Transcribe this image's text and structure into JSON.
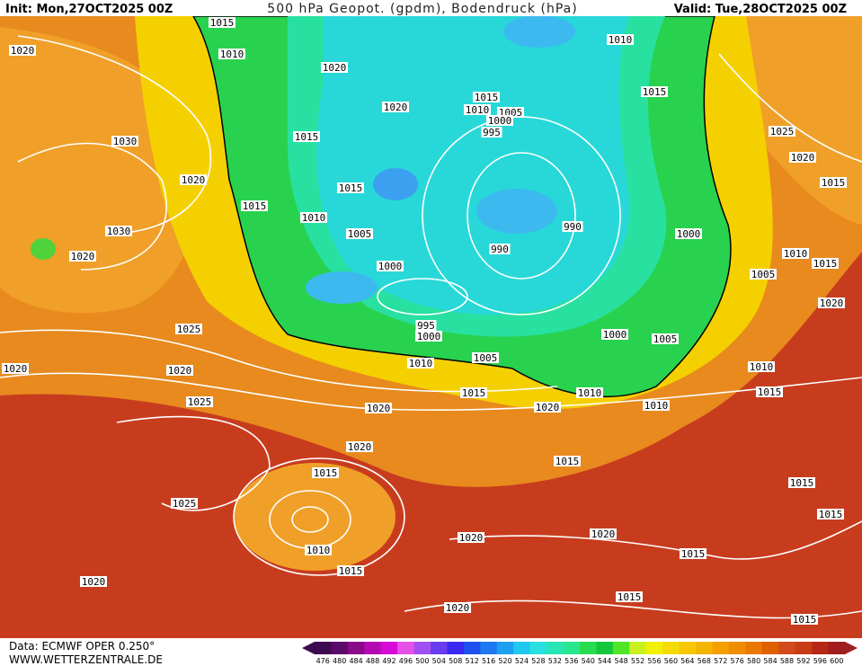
{
  "header": {
    "init": "Init: Mon,27OCT2025 00Z",
    "title": "500 hPa Geopot. (gpdm), Bodendruck (hPa)",
    "valid": "Valid: Tue,28OCT2025 00Z"
  },
  "footer": {
    "source": "Data: ECMWF OPER 0.250°",
    "website": "WWW.WETTERZENTRALE.DE"
  },
  "colorbar": {
    "labels": [
      476,
      480,
      484,
      488,
      492,
      496,
      500,
      504,
      508,
      512,
      516,
      520,
      524,
      528,
      532,
      536,
      540,
      544,
      548,
      552,
      556,
      560,
      564,
      568,
      572,
      576,
      580,
      584,
      588,
      592,
      596,
      600
    ],
    "colors": [
      "#3d0a4f",
      "#5c0a6b",
      "#8a0a8a",
      "#b40ab4",
      "#d80ad8",
      "#e650e6",
      "#a050f0",
      "#6a3cf0",
      "#3c28f0",
      "#1e50f0",
      "#1e78f0",
      "#1ea0f0",
      "#1ec8f0",
      "#28e0e0",
      "#28e6b4",
      "#28e68c",
      "#28dc50",
      "#14c83c",
      "#50e628",
      "#c8f01e",
      "#f0f000",
      "#f5dc00",
      "#f5c800",
      "#f5b400",
      "#f5a000",
      "#f08c00",
      "#e87800",
      "#e06000",
      "#d24a1e",
      "#c83c14",
      "#b42814",
      "#a01e1e"
    ]
  },
  "isobar_labels": [
    1015,
    1010,
    1020,
    1020,
    1015,
    1010,
    1005,
    1000,
    995,
    1010,
    1015,
    1020,
    1015,
    1030,
    1020,
    1015,
    1015,
    1010,
    1005,
    990,
    1000,
    1030,
    1020,
    990,
    1000,
    1025,
    1020,
    1015,
    1010,
    1015,
    1005,
    1020,
    995,
    1000,
    1010,
    1005,
    1000,
    1005,
    1025,
    1020,
    1020,
    1010,
    1015,
    1015,
    1010,
    1020,
    1010,
    1020,
    1025,
    1020,
    1015,
    1015,
    1025,
    1015,
    1010,
    1020,
    1020,
    1015,
    1015,
    1015,
    1020,
    1015,
    1020,
    1015
  ]
}
